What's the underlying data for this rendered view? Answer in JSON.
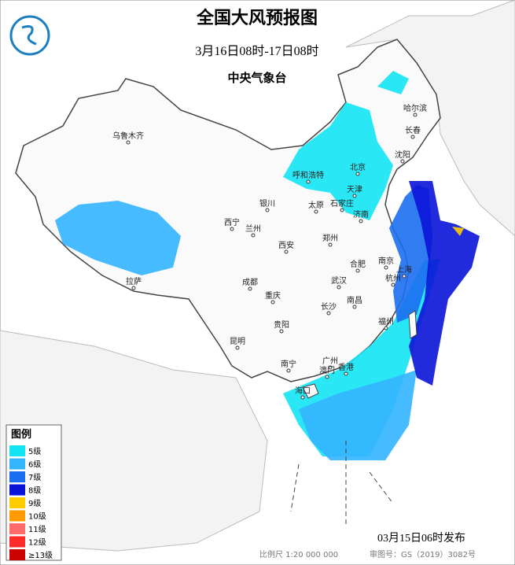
{
  "header": {
    "title": "全国大风预报图",
    "subtitle": "3月16日08时-17日08时",
    "issuer": "中央气象台"
  },
  "legend": {
    "title": "图例",
    "items": [
      {
        "label": "5级",
        "color": "#12e4f4"
      },
      {
        "label": "6级",
        "color": "#33b4ff"
      },
      {
        "label": "7级",
        "color": "#1c6ef0"
      },
      {
        "label": "8级",
        "color": "#0a14d8"
      },
      {
        "label": "9级",
        "color": "#ffcc00"
      },
      {
        "label": "10级",
        "color": "#ff9a00"
      },
      {
        "label": "11级",
        "color": "#ff6a6a"
      },
      {
        "label": "12级",
        "color": "#ff2a2a"
      },
      {
        "label": "≥13级",
        "color": "#cc0000"
      }
    ]
  },
  "cities": [
    "乌鲁木齐",
    "哈尔滨",
    "长春",
    "沈阳",
    "北京",
    "天津",
    "呼和浩特",
    "银川",
    "太原",
    "石家庄",
    "济南",
    "西宁",
    "兰州",
    "郑州",
    "西安",
    "合肥",
    "南京",
    "上海",
    "拉萨",
    "成都",
    "武汉",
    "杭州",
    "重庆",
    "长沙",
    "南昌",
    "福州",
    "贵阳",
    "昆明",
    "南宁",
    "广州",
    "澳门",
    "香港",
    "海口"
  ],
  "footer": {
    "issued": "03月15日06时发布",
    "scale": "比例尺 1:20 000 000",
    "review": "审图号：GS（2019）3082号"
  }
}
